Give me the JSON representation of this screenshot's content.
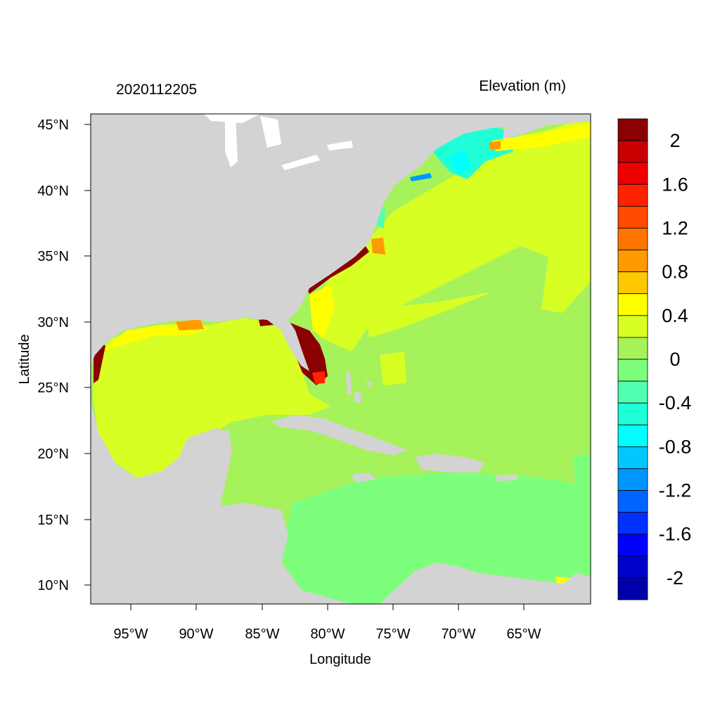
{
  "map": {
    "date_label": "2020112205",
    "variable_label": "Elevation (m)",
    "x_axis_label": "Longitude",
    "y_axis_label": "Latitude",
    "lon_ticks": [
      "95°W",
      "90°W",
      "85°W",
      "80°W",
      "75°W",
      "70°W",
      "65°W"
    ],
    "lat_ticks": [
      "45°N",
      "40°N",
      "35°N",
      "30°N",
      "25°N",
      "20°N",
      "15°N",
      "10°N"
    ],
    "colorbar": {
      "labels": [
        "2",
        "1.6",
        "1.2",
        "0.8",
        "0.4",
        "0",
        "-0.4",
        "-0.8",
        "-1.2",
        "-1.6",
        "-2"
      ],
      "colors": [
        "#8b0000",
        "#c80000",
        "#ee0000",
        "#ff2200",
        "#ff4a00",
        "#ff7400",
        "#ff9a00",
        "#ffc800",
        "#ffff00",
        "#d8ff24",
        "#a6f25a",
        "#7dff7d",
        "#52ffb0",
        "#1effd8",
        "#00ffff",
        "#00c8ff",
        "#0096ff",
        "#0064ff",
        "#0032ff",
        "#0000ff",
        "#0000cc",
        "#0000aa"
      ]
    },
    "palette": {
      "land": "#d3d3d3",
      "ocean_default": "#a6f25a",
      "gulf": "#d8ff24",
      "caribbean": "#7dff7d",
      "gulf_of_maine": "#1effd8",
      "florida_surge": "#8b0000"
    }
  }
}
